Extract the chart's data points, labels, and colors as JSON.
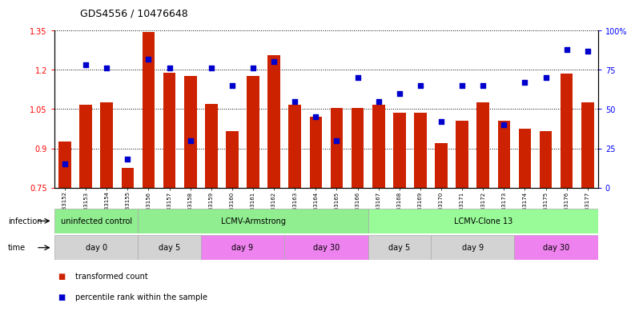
{
  "title": "GDS4556 / 10476648",
  "samples": [
    "GSM1083152",
    "GSM1083153",
    "GSM1083154",
    "GSM1083155",
    "GSM1083156",
    "GSM1083157",
    "GSM1083158",
    "GSM1083159",
    "GSM1083160",
    "GSM1083161",
    "GSM1083162",
    "GSM1083163",
    "GSM1083164",
    "GSM1083165",
    "GSM1083166",
    "GSM1083167",
    "GSM1083168",
    "GSM1083169",
    "GSM1083170",
    "GSM1083171",
    "GSM1083172",
    "GSM1083173",
    "GSM1083174",
    "GSM1083175",
    "GSM1083176",
    "GSM1083177"
  ],
  "bar_values": [
    0.925,
    1.065,
    1.075,
    0.825,
    1.345,
    1.19,
    1.175,
    1.07,
    0.965,
    1.175,
    1.255,
    1.065,
    1.02,
    1.055,
    1.055,
    1.065,
    1.035,
    1.035,
    0.92,
    1.005,
    1.075,
    1.005,
    0.975,
    0.965,
    1.185,
    1.075
  ],
  "percentile_values": [
    15,
    78,
    76,
    18,
    82,
    76,
    30,
    76,
    65,
    76,
    80,
    55,
    45,
    30,
    70,
    55,
    60,
    65,
    42,
    65,
    65,
    40,
    67,
    70,
    88,
    87
  ],
  "bar_color": "#cc2200",
  "dot_color": "#0000cc",
  "ylim_left": [
    0.75,
    1.35
  ],
  "ylim_right": [
    0,
    100
  ],
  "yticks_left": [
    0.75,
    0.9,
    1.05,
    1.2,
    1.35
  ],
  "yticks_right": [
    0,
    25,
    50,
    75,
    100
  ],
  "ytick_labels_right": [
    "0",
    "25",
    "50",
    "75",
    "100%"
  ],
  "infection_segments": [
    {
      "label": "uninfected control",
      "start": 0,
      "end": 4,
      "color": "#90ee90"
    },
    {
      "label": "LCMV-Armstrong",
      "start": 4,
      "end": 15,
      "color": "#90ee90"
    },
    {
      "label": "LCMV-Clone 13",
      "start": 15,
      "end": 26,
      "color": "#98fb98"
    }
  ],
  "time_segments": [
    {
      "label": "day 0",
      "start": 0,
      "end": 4,
      "color": "#d3d3d3"
    },
    {
      "label": "day 5",
      "start": 4,
      "end": 7,
      "color": "#d3d3d3"
    },
    {
      "label": "day 9",
      "start": 7,
      "end": 11,
      "color": "#ee82ee"
    },
    {
      "label": "day 30",
      "start": 11,
      "end": 15,
      "color": "#ee82ee"
    },
    {
      "label": "day 5",
      "start": 15,
      "end": 18,
      "color": "#d3d3d3"
    },
    {
      "label": "day 9",
      "start": 18,
      "end": 22,
      "color": "#d3d3d3"
    },
    {
      "label": "day 30",
      "start": 22,
      "end": 26,
      "color": "#ee82ee"
    }
  ],
  "legend_label_bar": "transformed count",
  "legend_label_dot": "percentile rank within the sample"
}
